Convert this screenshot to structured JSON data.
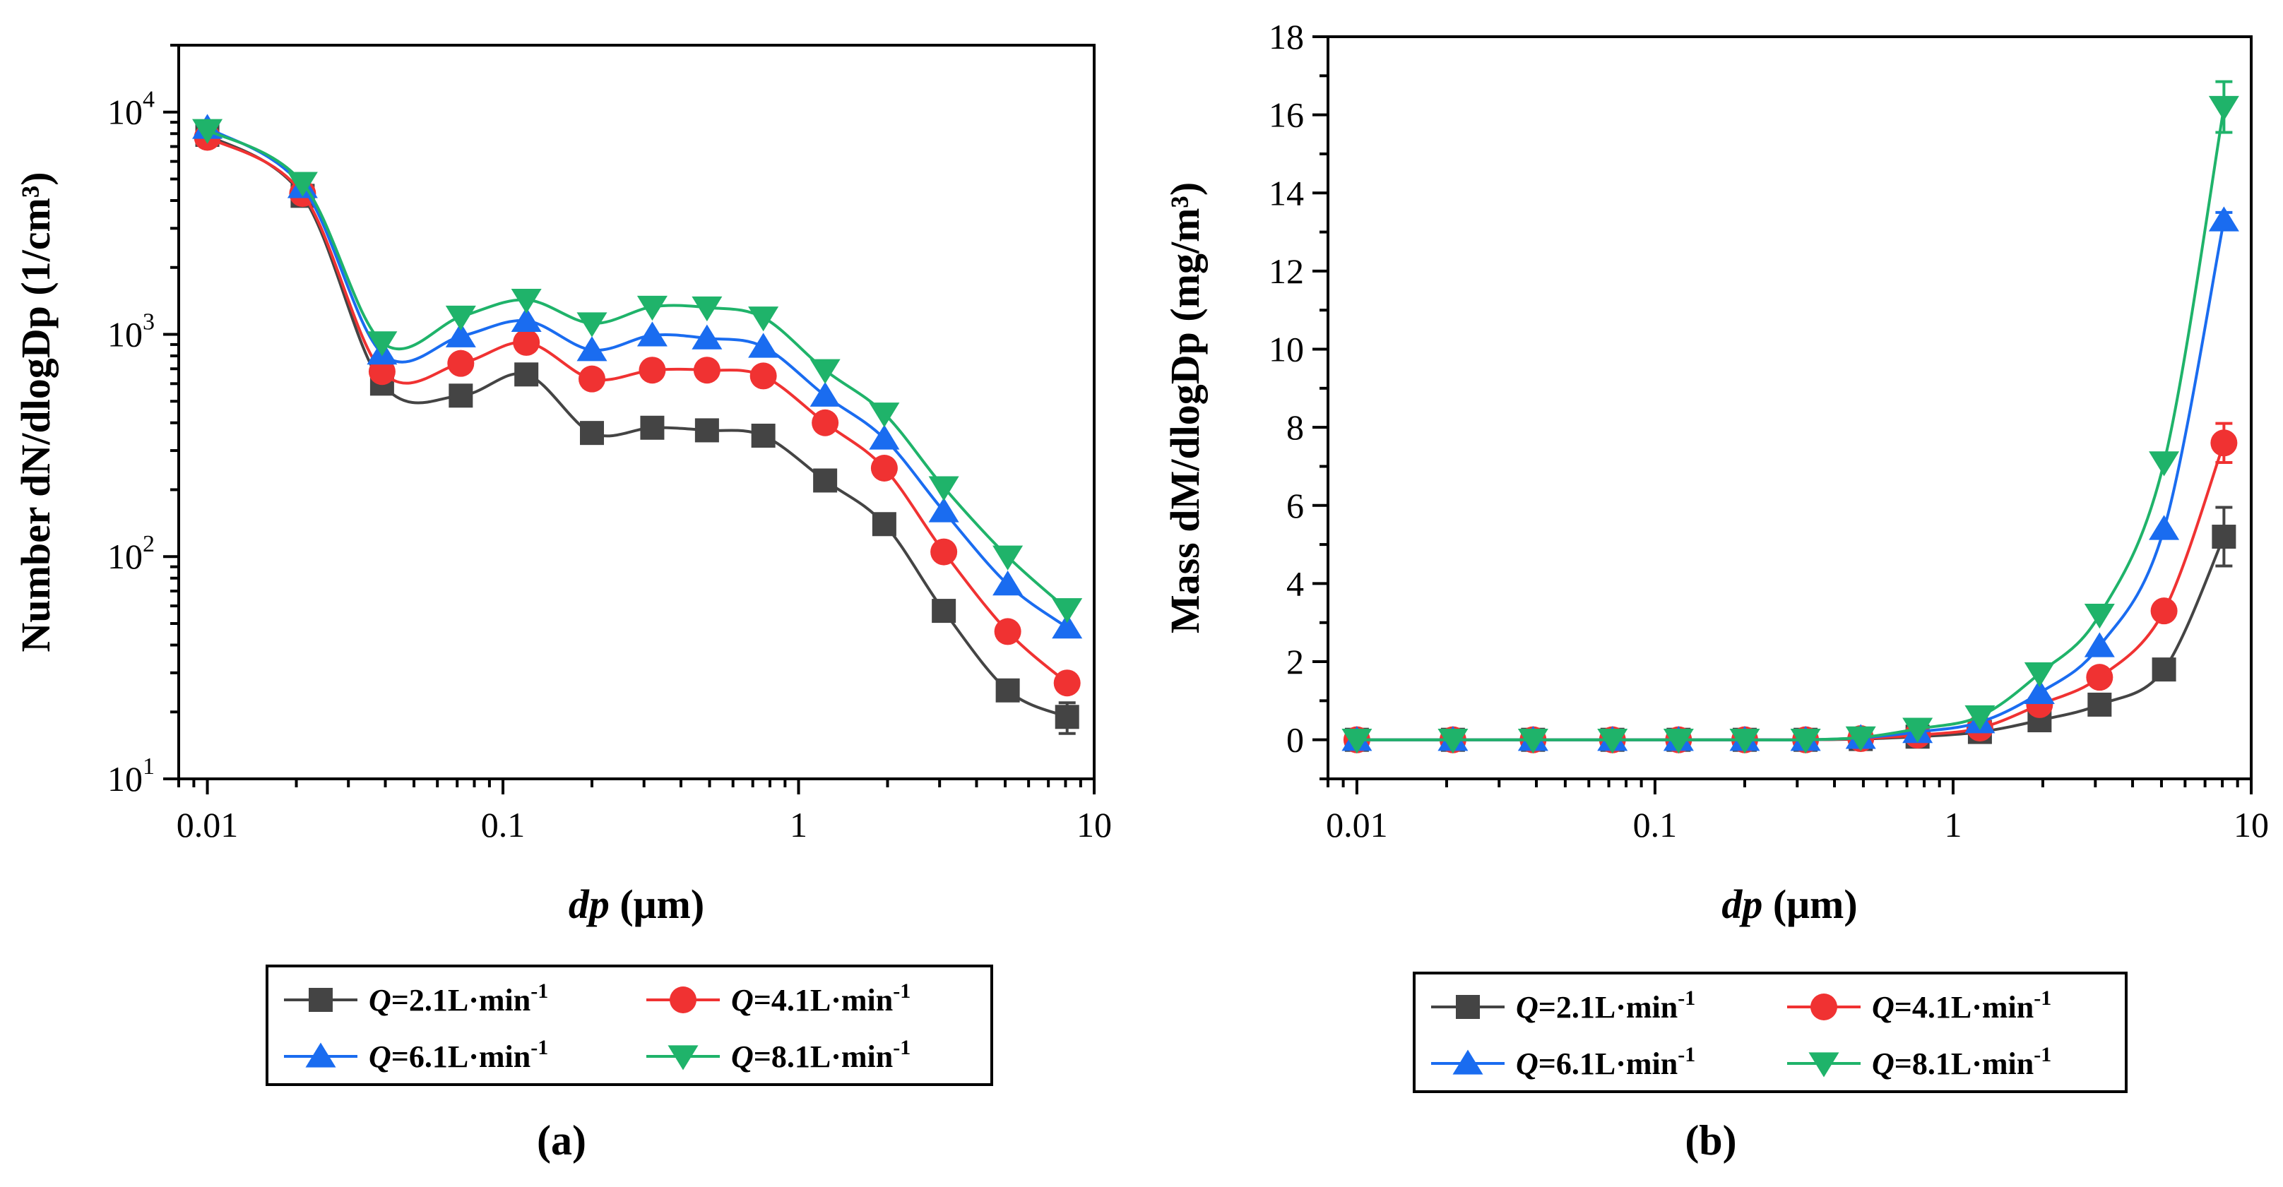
{
  "chart_data": [
    {
      "panel": "a",
      "type": "line",
      "yscale": "log",
      "xscale": "log",
      "xlabel": {
        "italic": "dp",
        "rest": " (μm)"
      },
      "ylabel": "Number dN/dlogDp (1/cm³)",
      "xlim": [
        0.008,
        10
      ],
      "ylim": [
        10,
        20000
      ],
      "xticks": [
        {
          "v": 0.01,
          "label": "0.01"
        },
        {
          "v": 0.1,
          "label": "0.1"
        },
        {
          "v": 1,
          "label": "1"
        },
        {
          "v": 10,
          "label": "10"
        }
      ],
      "yticks": [
        {
          "v": 10,
          "base": "10",
          "exp": "1"
        },
        {
          "v": 100,
          "base": "10",
          "exp": "2"
        },
        {
          "v": 1000,
          "base": "10",
          "exp": "3"
        },
        {
          "v": 10000,
          "base": "10",
          "exp": "4"
        }
      ],
      "x": [
        0.01,
        0.021,
        0.039,
        0.072,
        0.12,
        0.2,
        0.32,
        0.49,
        0.76,
        1.23,
        1.95,
        3.1,
        5.1,
        8.1
      ],
      "series": [
        {
          "name": "Q=2.1L·min-1",
          "values": [
            7900,
            4200,
            600,
            530,
            660,
            360,
            380,
            370,
            350,
            220,
            140,
            57,
            25,
            19
          ],
          "err": [
            0,
            0,
            0,
            0,
            0,
            0,
            0,
            0,
            0,
            0,
            0,
            0,
            0,
            3
          ]
        },
        {
          "name": "Q=4.1L·min-1",
          "values": [
            7700,
            4300,
            680,
            740,
            920,
            630,
            690,
            690,
            650,
            400,
            250,
            105,
            46,
            27
          ],
          "err": [
            0,
            0,
            0,
            0,
            0,
            0,
            0,
            0,
            0,
            0,
            0,
            0,
            0,
            0
          ]
        },
        {
          "name": "Q=6.1L·min-1",
          "values": [
            8500,
            4600,
            820,
            980,
            1150,
            850,
            990,
            960,
            880,
            530,
            340,
            160,
            75,
            48
          ],
          "err": [
            0,
            0,
            0,
            0,
            0,
            0,
            0,
            0,
            0,
            0,
            0,
            0,
            0,
            0
          ]
        },
        {
          "name": "Q=8.1L·min-1",
          "values": [
            8300,
            4800,
            920,
            1200,
            1430,
            1120,
            1330,
            1320,
            1190,
            690,
            440,
            205,
            100,
            58
          ],
          "err": [
            0,
            0,
            0,
            0,
            0,
            0,
            0,
            0,
            0,
            0,
            0,
            0,
            0,
            0
          ]
        }
      ],
      "legend": [
        {
          "q": "Q",
          "text": "=2.1L·min",
          "sup": "-1"
        },
        {
          "q": "Q",
          "text": "=4.1L·min",
          "sup": "-1"
        },
        {
          "q": "Q",
          "text": "=6.1L·min",
          "sup": "-1"
        },
        {
          "q": "Q",
          "text": "=8.1L·min",
          "sup": "-1"
        }
      ],
      "panel_label": "(a)"
    },
    {
      "panel": "b",
      "type": "line",
      "yscale": "linear",
      "xscale": "log",
      "xlabel": {
        "italic": "dp",
        "rest": " (μm)"
      },
      "ylabel": "Mass dM/dlogDp (mg/m³)",
      "xlim": [
        0.008,
        10
      ],
      "ylim": [
        -1,
        18
      ],
      "xticks": [
        {
          "v": 0.01,
          "label": "0.01"
        },
        {
          "v": 0.1,
          "label": "0.1"
        },
        {
          "v": 1,
          "label": "1"
        },
        {
          "v": 10,
          "label": "10"
        }
      ],
      "yticks": [
        {
          "v": 0,
          "label": "0"
        },
        {
          "v": 2,
          "label": "2"
        },
        {
          "v": 4,
          "label": "4"
        },
        {
          "v": 6,
          "label": "6"
        },
        {
          "v": 8,
          "label": "8"
        },
        {
          "v": 10,
          "label": "10"
        },
        {
          "v": 12,
          "label": "12"
        },
        {
          "v": 14,
          "label": "14"
        },
        {
          "v": 16,
          "label": "16"
        },
        {
          "v": 18,
          "label": "18"
        }
      ],
      "x": [
        0.01,
        0.021,
        0.039,
        0.072,
        0.12,
        0.2,
        0.32,
        0.49,
        0.76,
        1.23,
        1.95,
        3.1,
        5.1,
        8.1
      ],
      "series": [
        {
          "name": "Q=2.1L·min-1",
          "values": [
            0,
            0,
            0,
            0,
            0,
            0,
            0,
            0.02,
            0.08,
            0.2,
            0.5,
            0.9,
            1.8,
            5.2
          ],
          "err": [
            0,
            0,
            0,
            0,
            0,
            0,
            0,
            0,
            0,
            0,
            0,
            0,
            0,
            0.75
          ]
        },
        {
          "name": "Q=4.1L·min-1",
          "values": [
            0,
            0,
            0,
            0,
            0,
            0,
            0,
            0.03,
            0.12,
            0.3,
            0.9,
            1.6,
            3.3,
            7.6
          ],
          "err": [
            0,
            0,
            0,
            0,
            0,
            0,
            0,
            0,
            0,
            0,
            0,
            0,
            0,
            0.5
          ]
        },
        {
          "name": "Q=6.1L·min-1",
          "values": [
            0,
            0,
            0,
            0,
            0,
            0,
            0,
            0.05,
            0.2,
            0.45,
            1.2,
            2.4,
            5.4,
            13.3
          ],
          "err": [
            0,
            0,
            0,
            0,
            0,
            0,
            0,
            0,
            0,
            0,
            0,
            0,
            0,
            0.2
          ]
        },
        {
          "name": "Q=8.1L·min-1",
          "values": [
            0,
            0,
            0,
            0,
            0,
            0,
            0,
            0.06,
            0.28,
            0.6,
            1.7,
            3.2,
            7.1,
            16.2
          ],
          "err": [
            0,
            0,
            0,
            0,
            0,
            0,
            0,
            0,
            0,
            0,
            0,
            0,
            0,
            0.65
          ]
        }
      ],
      "legend": [
        {
          "q": "Q",
          "text": "=2.1L·min",
          "sup": "-1"
        },
        {
          "q": "Q",
          "text": "=4.1L·min",
          "sup": "-1"
        },
        {
          "q": "Q",
          "text": "=6.1L·min",
          "sup": "-1"
        },
        {
          "q": "Q",
          "text": "=8.1L·min",
          "sup": "-1"
        }
      ],
      "panel_label": "(b)"
    }
  ],
  "colors": {
    "series": [
      "#444444",
      "#f03232",
      "#1a6cf0",
      "#1fb36a"
    ],
    "axis": "#000000"
  },
  "markers": [
    "square",
    "circle",
    "triangle-up",
    "triangle-down"
  ]
}
